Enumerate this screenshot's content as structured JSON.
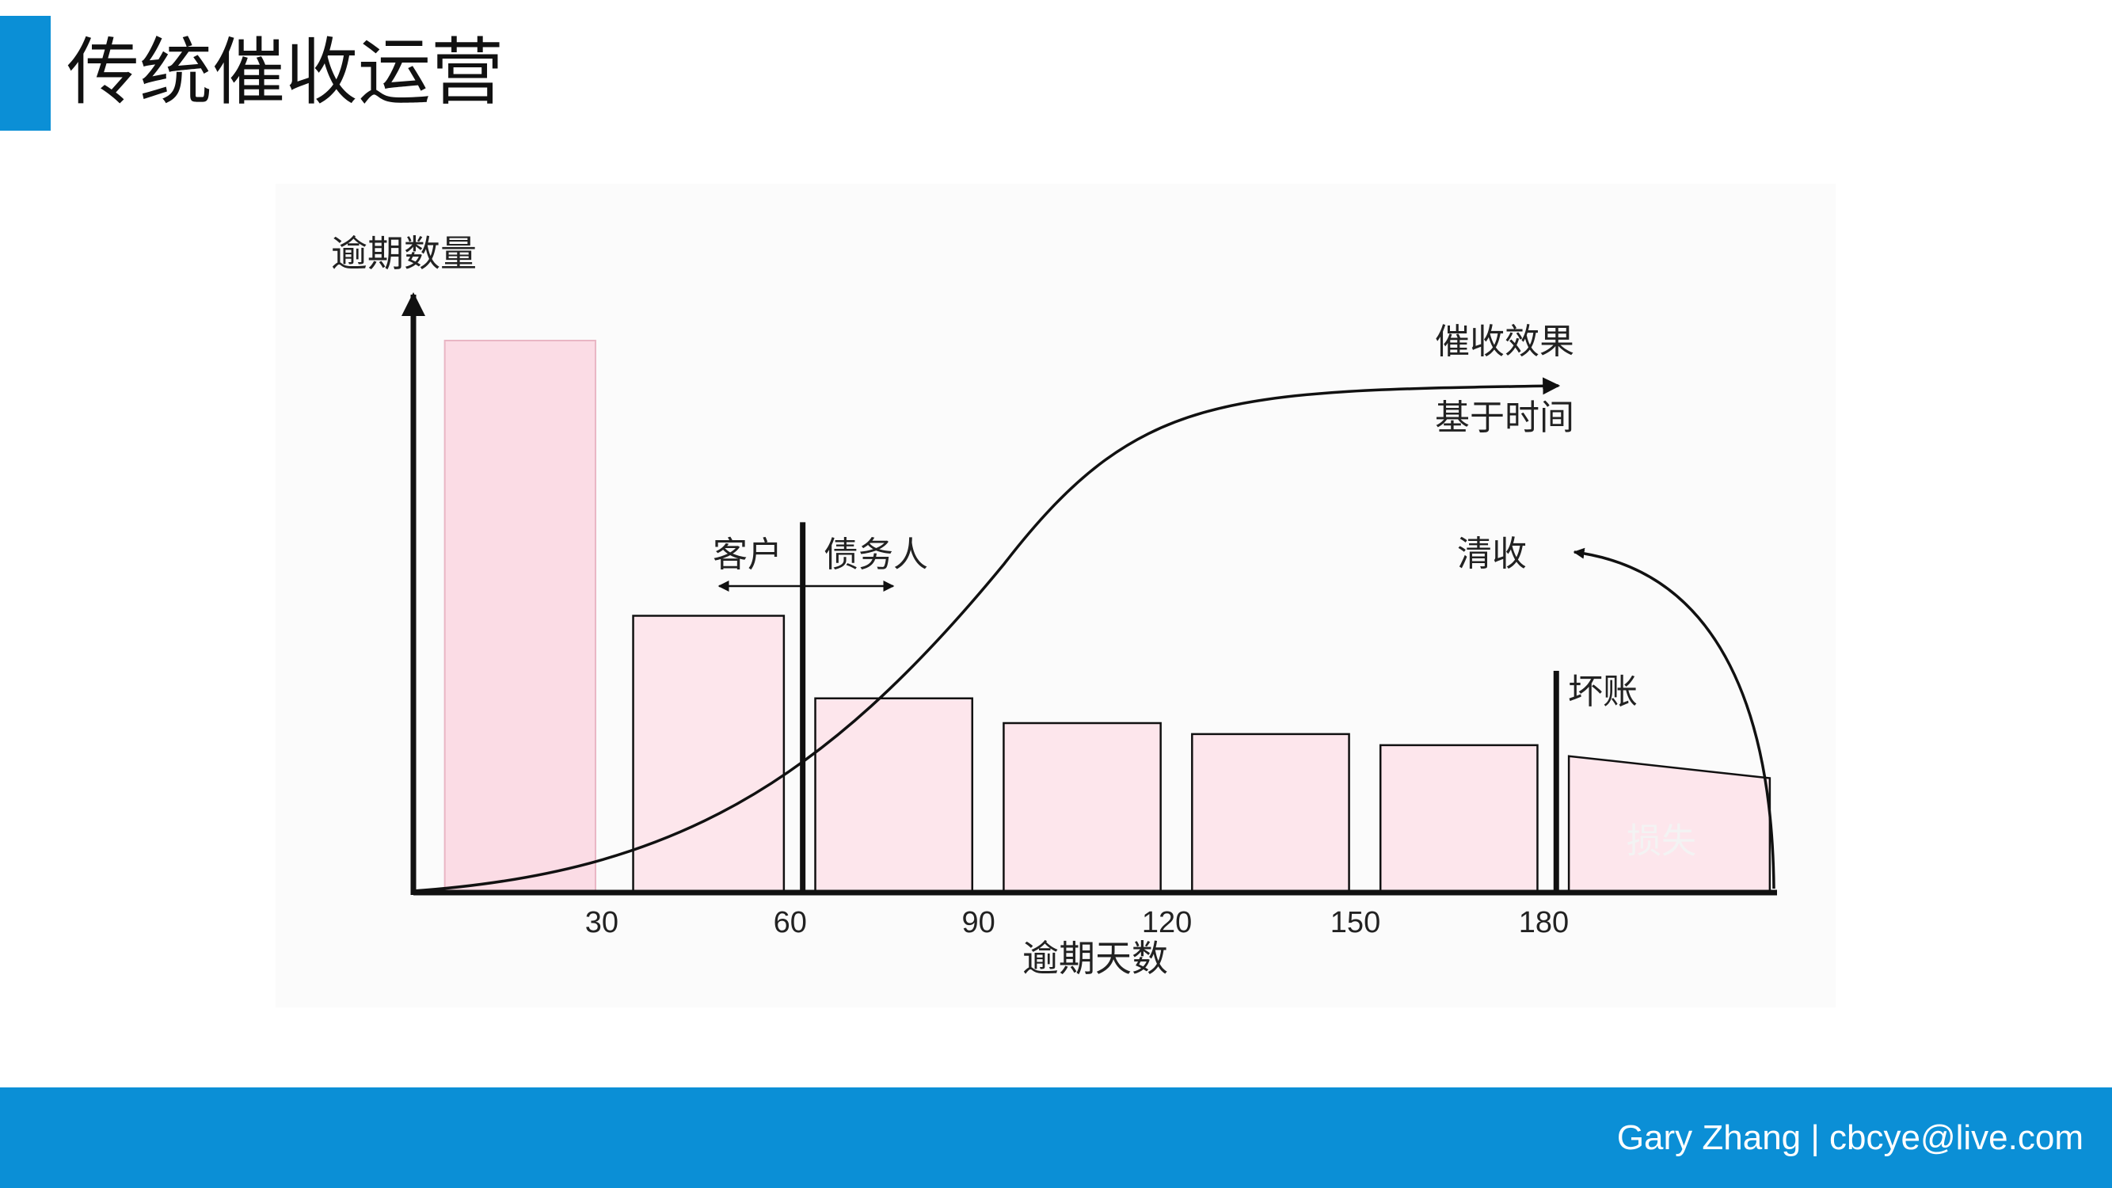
{
  "slide": {
    "title": "传统催收运营",
    "footer": "Gary Zhang | cbcye@live.com"
  },
  "colors": {
    "accent": "#0b8fd6",
    "bar_fill": "#fde6ec",
    "bar_fill_first": "#fbdce5",
    "bar_stroke": "#111111",
    "first_bar_stroke": "#e9b6c4"
  },
  "chart_data": {
    "type": "bar",
    "ylabel": "逾期数量",
    "xlabel": "逾期天数",
    "xlim": [
      0,
      210
    ],
    "ylim": [
      0,
      100
    ],
    "x_ticks": [
      30,
      60,
      90,
      120,
      150,
      180
    ],
    "bars": [
      {
        "start": 5,
        "end": 29,
        "value": 100
      },
      {
        "start": 35,
        "end": 59,
        "value": 50
      },
      {
        "start": 64,
        "end": 89,
        "value": 35
      },
      {
        "start": 94,
        "end": 119,
        "value": 30.5
      },
      {
        "start": 124,
        "end": 149,
        "value": 28.5
      },
      {
        "start": 154,
        "end": 179,
        "value": 26.5
      },
      {
        "start": 184,
        "end": 216,
        "value": 24.5,
        "value_end": 20.5,
        "label": "损失"
      }
    ],
    "dividers": [
      {
        "x": 62,
        "top": 67
      },
      {
        "x": 182,
        "top": 40
      }
    ],
    "annotations": {
      "left_of_60": "客户",
      "right_of_60": "债务人",
      "curve_label_1": "催收效果",
      "curve_label_2": "基于时间",
      "recovery": "清收",
      "bad_debt": "坏账"
    }
  }
}
